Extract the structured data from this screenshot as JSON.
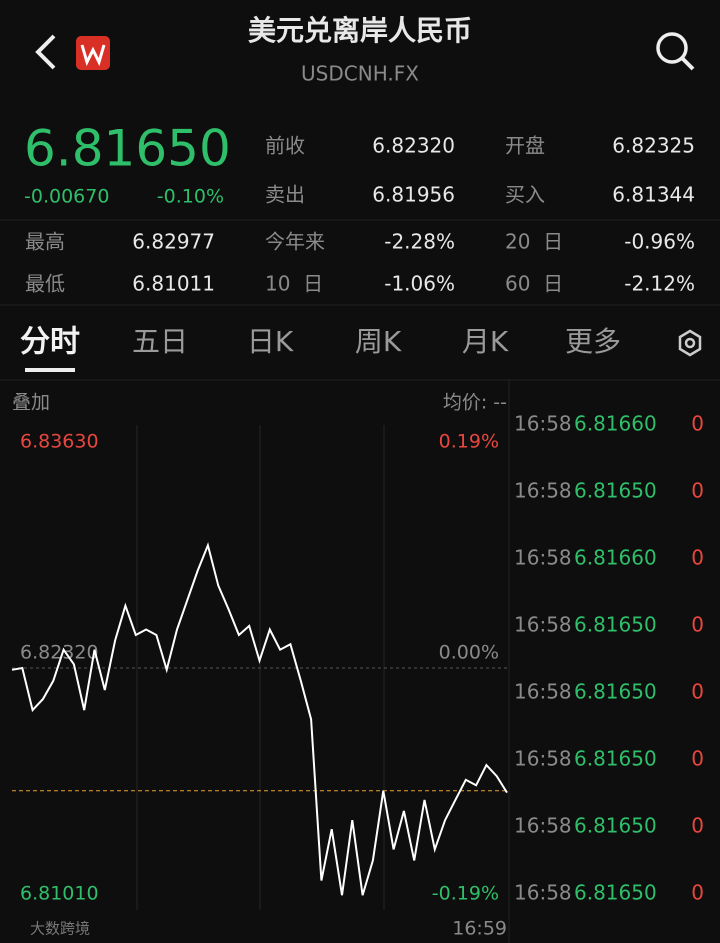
{
  "header": {
    "title": "美元兑离岸人民币",
    "subtitle": "USDCNH.FX"
  },
  "quote": {
    "price": "6.81650",
    "change": "-0.00670",
    "change_pct": "-0.10%"
  },
  "stats": [
    {
      "label": "前收",
      "value": "6.82320"
    },
    {
      "label": "开盘",
      "value": "6.82325"
    },
    {
      "label": "卖出",
      "value": "6.81956"
    },
    {
      "label": "买入",
      "value": "6.81344"
    },
    {
      "label": "最高",
      "value": "6.82977"
    },
    {
      "label": "今年来",
      "value": "-2.28%"
    },
    {
      "label": "20  日",
      "value": "-0.96%"
    },
    {
      "label": "最低",
      "value": "6.81011"
    },
    {
      "label": "10  日",
      "value": "-1.06%"
    },
    {
      "label": "60  日",
      "value": "-2.12%"
    }
  ],
  "tabs": [
    "分时",
    "五日",
    "日K",
    "周K",
    "月K",
    "更多"
  ],
  "chart_header": {
    "overlay": "叠加",
    "average": "均价: --"
  },
  "chart": {
    "type": "line",
    "color": "#ffffff",
    "values": [
      6.8231,
      6.8232,
      6.8209,
      6.8215,
      6.8225,
      6.8242,
      6.8234,
      6.8209,
      6.8242,
      6.822,
      6.8247,
      6.8266,
      6.825,
      6.8253,
      6.825,
      6.8231,
      6.8253,
      6.8269,
      6.8285,
      6.8299,
      6.8277,
      6.8264,
      6.825,
      6.8255,
      6.8236,
      6.8253,
      6.8242,
      6.8245,
      6.8225,
      6.8204,
      6.8116,
      6.8144,
      6.8108,
      6.8149,
      6.8108,
      6.8127,
      6.8165,
      6.8133,
      6.8154,
      6.8127,
      6.816,
      6.8133,
      6.8149,
      6.816,
      6.8171,
      6.8168,
      6.8179,
      6.8173,
      6.8164
    ],
    "ylim": [
      6.8101,
      6.8363
    ],
    "yticks": [
      {
        "value": 6.8363,
        "label": "6.83630"
      },
      {
        "value": 6.8232,
        "label": "6.82320"
      },
      {
        "value": 6.8101,
        "label": "6.81010"
      }
    ],
    "y2lim": [
      -0.19,
      0.19
    ],
    "y2ticks": [
      {
        "value": 0.19,
        "label": "0.19%"
      },
      {
        "value": 0,
        "label": "0.00%"
      },
      {
        "value": -0.19,
        "label": "-0.19%"
      }
    ],
    "reference_line": 6.8165,
    "end_time": "16:59"
  },
  "trades": [
    {
      "time": "16:58",
      "price": "6.81660",
      "volume": "0"
    },
    {
      "time": "16:58",
      "price": "6.81650",
      "volume": "0"
    },
    {
      "time": "16:58",
      "price": "6.81660",
      "volume": "0"
    },
    {
      "time": "16:58",
      "price": "6.81650",
      "volume": "0"
    },
    {
      "time": "16:58",
      "price": "6.81650",
      "volume": "0"
    },
    {
      "time": "16:58",
      "price": "6.81650",
      "volume": "0"
    },
    {
      "time": "16:58",
      "price": "6.81650",
      "volume": "0"
    },
    {
      "time": "16:58",
      "price": "6.81650",
      "volume": "0"
    }
  ],
  "watermark": "大数跨境"
}
